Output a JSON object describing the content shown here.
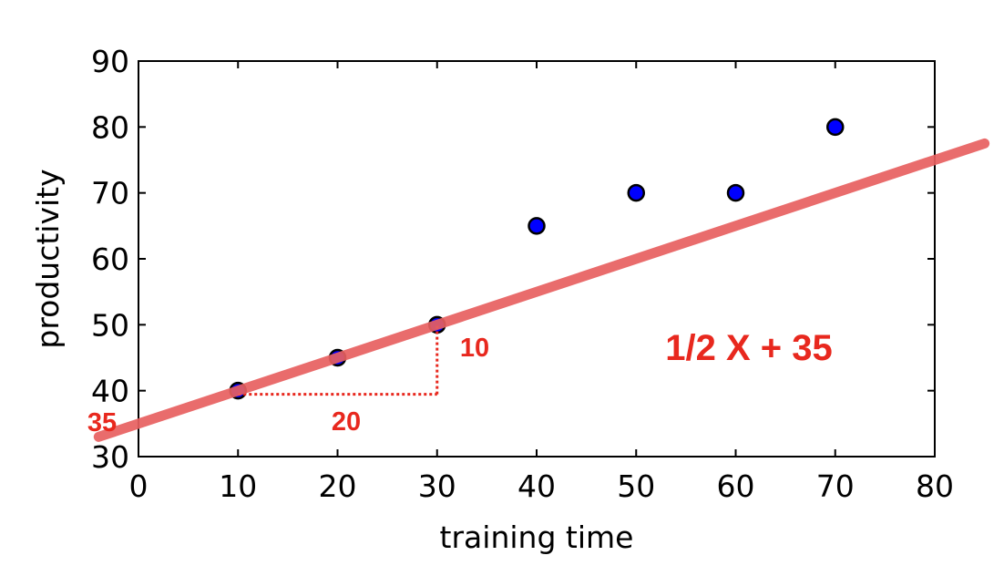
{
  "chart_data": {
    "type": "scatter",
    "xlabel": "training time",
    "ylabel": "productivity",
    "xlim": [
      0,
      80
    ],
    "ylim": [
      30,
      90
    ],
    "xticks": [
      0,
      10,
      20,
      30,
      40,
      50,
      60,
      70,
      80
    ],
    "yticks": [
      30,
      40,
      50,
      60,
      70,
      80,
      90
    ],
    "grid": false,
    "points": [
      {
        "x": 10,
        "y": 40
      },
      {
        "x": 20,
        "y": 45
      },
      {
        "x": 30,
        "y": 50
      },
      {
        "x": 40,
        "y": 65
      },
      {
        "x": 50,
        "y": 70
      },
      {
        "x": 60,
        "y": 70
      },
      {
        "x": 70,
        "y": 80
      }
    ],
    "fit_line": {
      "slope": 0.5,
      "intercept": 35,
      "x_range": [
        -4,
        85
      ]
    },
    "annotations": {
      "equation": "1/2 X + 35",
      "intercept_label": "35",
      "run_label": "20",
      "rise_label": "10"
    },
    "colors": {
      "point_fill": "#0000ff",
      "point_edge": "#000000",
      "fit_line": "#e86060",
      "annotation": "#e8281e"
    }
  }
}
